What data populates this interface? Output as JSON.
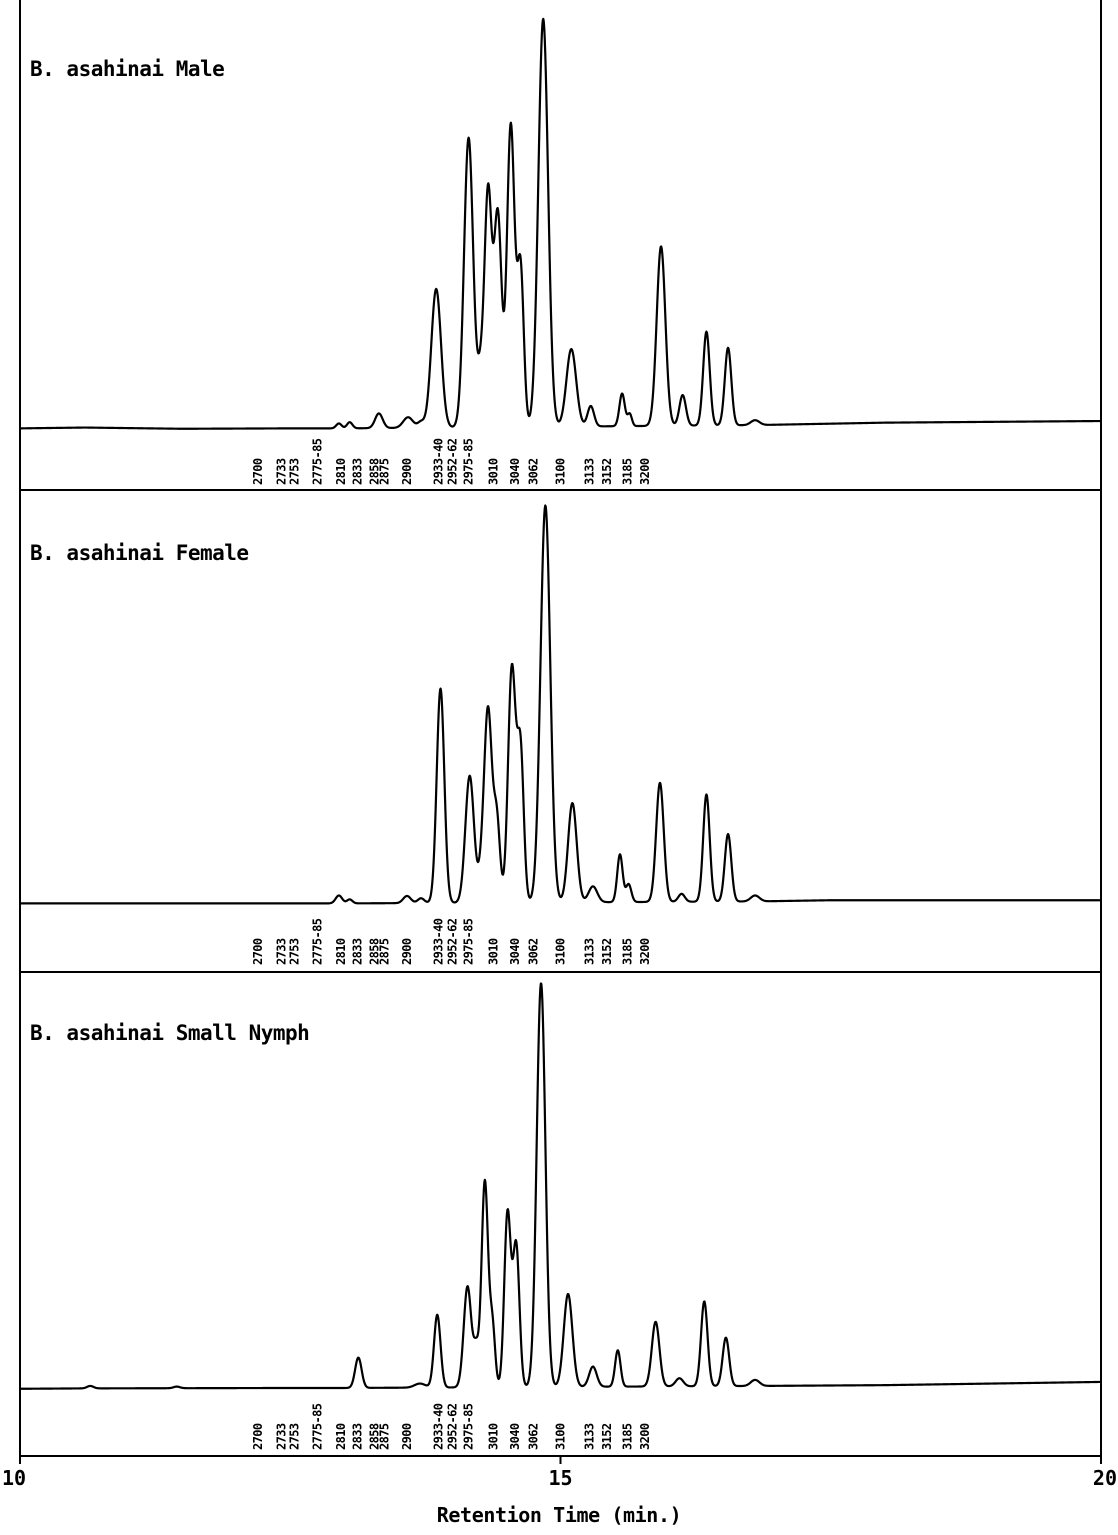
{
  "chart_data": {
    "type": "line",
    "xlabel": "Retention Time (min.)",
    "xlim": [
      10,
      20
    ],
    "x_ticks": [
      "10",
      "15",
      "20"
    ],
    "peak_labels": [
      "2700",
      "2733",
      "2753",
      "2775-85",
      "2810",
      "2833",
      "2858",
      "2875",
      "2900",
      "2933-40",
      "2952-62",
      "2975-85",
      "3010",
      "3040",
      "3062",
      "3100",
      "3133",
      "3152",
      "3185",
      "3200"
    ],
    "panels": [
      {
        "title": "B. asahinai Male",
        "baseline": [
          [
            10.0,
            0.004
          ],
          [
            10.6,
            0.006
          ],
          [
            11.5,
            0.003
          ],
          [
            12.5,
            0.004
          ],
          [
            13.0,
            0.004
          ],
          [
            16.8,
            0.012
          ],
          [
            18.0,
            0.018
          ],
          [
            20.0,
            0.022
          ]
        ],
        "peaks": [
          {
            "rt": 12.95,
            "h": 0.012,
            "w": 0.025
          },
          {
            "rt": 13.05,
            "h": 0.015,
            "w": 0.025
          },
          {
            "rt": 13.32,
            "h": 0.036,
            "w": 0.035
          },
          {
            "rt": 13.59,
            "h": 0.026,
            "w": 0.045
          },
          {
            "rt": 13.71,
            "h": 0.014,
            "w": 0.03
          },
          {
            "rt": 13.85,
            "h": 0.34,
            "w": 0.045
          },
          {
            "rt": 14.15,
            "h": 0.71,
            "w": 0.042
          },
          {
            "rt": 14.26,
            "h": 0.12,
            "w": 0.03
          },
          {
            "rt": 14.33,
            "h": 0.57,
            "w": 0.033
          },
          {
            "rt": 14.42,
            "h": 0.52,
            "w": 0.035
          },
          {
            "rt": 14.54,
            "h": 0.74,
            "w": 0.035
          },
          {
            "rt": 14.63,
            "h": 0.39,
            "w": 0.03
          },
          {
            "rt": 14.84,
            "h": 1.0,
            "w": 0.045
          },
          {
            "rt": 15.1,
            "h": 0.19,
            "w": 0.045
          },
          {
            "rt": 15.28,
            "h": 0.05,
            "w": 0.03
          },
          {
            "rt": 15.57,
            "h": 0.08,
            "w": 0.025
          },
          {
            "rt": 15.64,
            "h": 0.03,
            "w": 0.02
          },
          {
            "rt": 15.93,
            "h": 0.44,
            "w": 0.04
          },
          {
            "rt": 16.13,
            "h": 0.075,
            "w": 0.03
          },
          {
            "rt": 16.35,
            "h": 0.23,
            "w": 0.03
          },
          {
            "rt": 16.55,
            "h": 0.19,
            "w": 0.03
          },
          {
            "rt": 16.8,
            "h": 0.012,
            "w": 0.04
          }
        ]
      },
      {
        "title": "B. asahinai Female",
        "baseline": [
          [
            10.0,
            0.004
          ],
          [
            13.0,
            0.004
          ],
          [
            16.8,
            0.009
          ],
          [
            17.5,
            0.012
          ],
          [
            20.0,
            0.012
          ]
        ],
        "peaks": [
          {
            "rt": 12.95,
            "h": 0.02,
            "w": 0.03
          },
          {
            "rt": 13.05,
            "h": 0.01,
            "w": 0.025
          },
          {
            "rt": 13.58,
            "h": 0.018,
            "w": 0.035
          },
          {
            "rt": 13.71,
            "h": 0.012,
            "w": 0.03
          },
          {
            "rt": 13.89,
            "h": 0.54,
            "w": 0.035
          },
          {
            "rt": 14.16,
            "h": 0.32,
            "w": 0.04
          },
          {
            "rt": 14.27,
            "h": 0.07,
            "w": 0.03
          },
          {
            "rt": 14.33,
            "h": 0.48,
            "w": 0.035
          },
          {
            "rt": 14.41,
            "h": 0.21,
            "w": 0.03
          },
          {
            "rt": 14.55,
            "h": 0.59,
            "w": 0.035
          },
          {
            "rt": 14.63,
            "h": 0.38,
            "w": 0.03
          },
          {
            "rt": 14.86,
            "h": 1.0,
            "w": 0.045
          },
          {
            "rt": 15.11,
            "h": 0.25,
            "w": 0.04
          },
          {
            "rt": 15.3,
            "h": 0.04,
            "w": 0.04
          },
          {
            "rt": 15.55,
            "h": 0.12,
            "w": 0.025
          },
          {
            "rt": 15.63,
            "h": 0.045,
            "w": 0.025
          },
          {
            "rt": 15.92,
            "h": 0.3,
            "w": 0.035
          },
          {
            "rt": 16.12,
            "h": 0.02,
            "w": 0.03
          },
          {
            "rt": 16.35,
            "h": 0.27,
            "w": 0.03
          },
          {
            "rt": 16.55,
            "h": 0.17,
            "w": 0.03
          },
          {
            "rt": 16.8,
            "h": 0.015,
            "w": 0.04
          }
        ]
      },
      {
        "title": "B. asahinai Small Nymph",
        "baseline": [
          [
            10.0,
            0.003
          ],
          [
            10.6,
            0.004
          ],
          [
            12.5,
            0.005
          ],
          [
            13.0,
            0.005
          ],
          [
            16.8,
            0.01
          ],
          [
            18.0,
            0.012
          ],
          [
            20.0,
            0.02
          ]
        ],
        "peaks": [
          {
            "rt": 10.65,
            "h": 0.006,
            "w": 0.03
          },
          {
            "rt": 11.45,
            "h": 0.004,
            "w": 0.03
          },
          {
            "rt": 13.13,
            "h": 0.075,
            "w": 0.03
          },
          {
            "rt": 13.7,
            "h": 0.01,
            "w": 0.05
          },
          {
            "rt": 13.86,
            "h": 0.18,
            "w": 0.03
          },
          {
            "rt": 14.14,
            "h": 0.25,
            "w": 0.035
          },
          {
            "rt": 14.22,
            "h": 0.09,
            "w": 0.025
          },
          {
            "rt": 14.3,
            "h": 0.51,
            "w": 0.03
          },
          {
            "rt": 14.37,
            "h": 0.15,
            "w": 0.025
          },
          {
            "rt": 14.51,
            "h": 0.43,
            "w": 0.03
          },
          {
            "rt": 14.59,
            "h": 0.35,
            "w": 0.03
          },
          {
            "rt": 14.82,
            "h": 1.0,
            "w": 0.04
          },
          {
            "rt": 15.07,
            "h": 0.23,
            "w": 0.04
          },
          {
            "rt": 15.3,
            "h": 0.05,
            "w": 0.035
          },
          {
            "rt": 15.53,
            "h": 0.09,
            "w": 0.025
          },
          {
            "rt": 15.88,
            "h": 0.16,
            "w": 0.035
          },
          {
            "rt": 16.1,
            "h": 0.02,
            "w": 0.035
          },
          {
            "rt": 16.33,
            "h": 0.21,
            "w": 0.03
          },
          {
            "rt": 16.53,
            "h": 0.12,
            "w": 0.03
          },
          {
            "rt": 16.8,
            "h": 0.015,
            "w": 0.04
          }
        ]
      }
    ]
  }
}
